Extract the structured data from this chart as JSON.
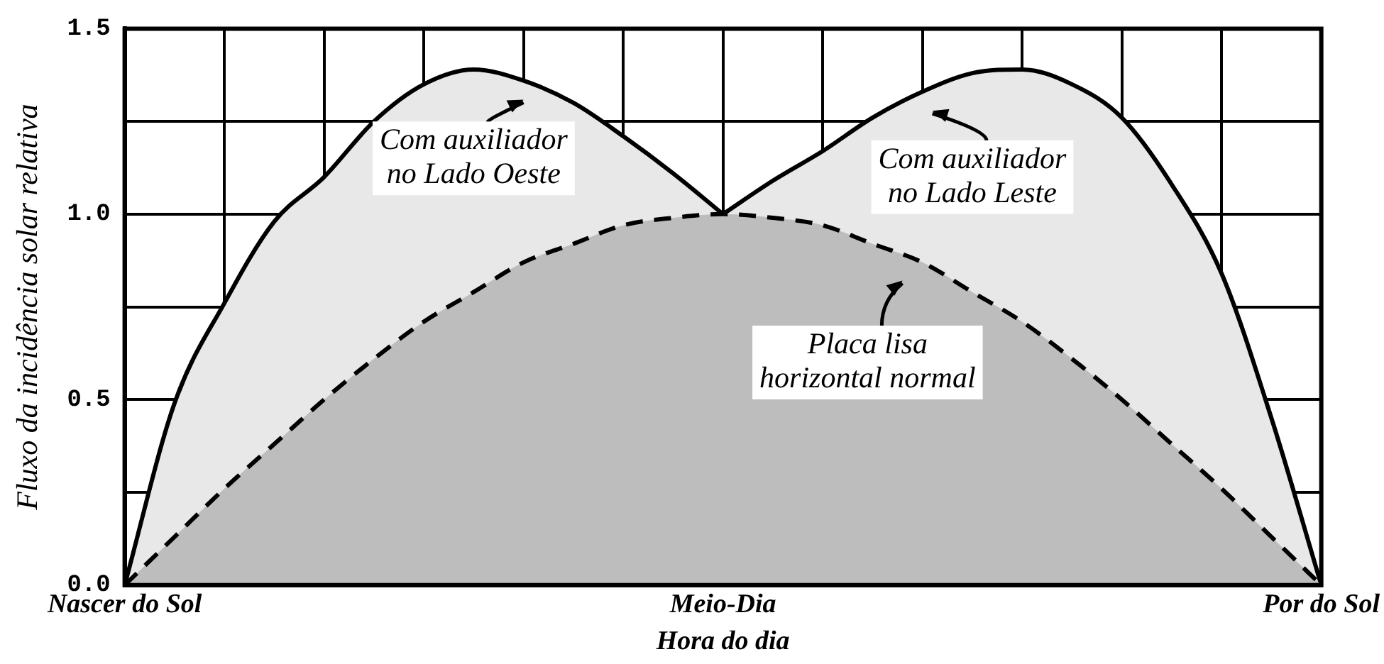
{
  "chart_data": {
    "type": "area",
    "xlabel": "Hora do dia",
    "ylabel": "Fluxo da incidência solar relativa",
    "categories": [
      "Nascer do Sol",
      null,
      null,
      null,
      null,
      null,
      null,
      null,
      null,
      null,
      null,
      null,
      "Meio-Dia",
      null,
      null,
      null,
      null,
      null,
      null,
      null,
      null,
      null,
      null,
      null,
      "Por do Sol"
    ],
    "series": [
      {
        "color": "#bdbdbd",
        "line_style": "dashed",
        "values": [
          0,
          0.13,
          0.26,
          0.38,
          0.5,
          0.61,
          0.71,
          0.79,
          0.87,
          0.92,
          0.97,
          0.99,
          1.0,
          0.99,
          0.97,
          0.92,
          0.87,
          0.79,
          0.71,
          0.61,
          0.5,
          0.38,
          0.26,
          0.13,
          0
        ]
      },
      {
        "color": "#e8e8e8",
        "line_style": "solid",
        "values": [
          0,
          0.49,
          0.76,
          0.98,
          1.1,
          1.25,
          1.35,
          1.39,
          1.36,
          1.3,
          1.21,
          1.11,
          1.0,
          null,
          null,
          null,
          null,
          null,
          null,
          null,
          null,
          null,
          null,
          null,
          null
        ]
      },
      {
        "color": "#e8e8e8",
        "line_style": "solid",
        "values": [
          null,
          null,
          null,
          null,
          null,
          null,
          null,
          null,
          null,
          null,
          null,
          null,
          1.0,
          1.09,
          1.17,
          1.26,
          1.33,
          1.38,
          1.39,
          1.35,
          1.26,
          1.08,
          0.84,
          0.45,
          0
        ]
      }
    ],
    "ylim": [
      0,
      1.5
    ],
    "yticks": [
      {
        "value": 0,
        "label": "0.0"
      },
      {
        "value": 0.25,
        "label": null
      },
      {
        "value": 0.5,
        "label": "0.5"
      },
      {
        "value": 0.75,
        "label": null
      },
      {
        "value": 1,
        "label": "1.0"
      },
      {
        "value": 1.25,
        "label": null
      },
      {
        "value": 1.5,
        "label": "1.5"
      }
    ],
    "grid": true,
    "legend": false,
    "marker": "none",
    "annotations": [
      "Com auxiliador no Lado Oeste",
      "Com auxiliador no Lado Leste",
      "Placa lisa horizontal normal"
    ]
  }
}
